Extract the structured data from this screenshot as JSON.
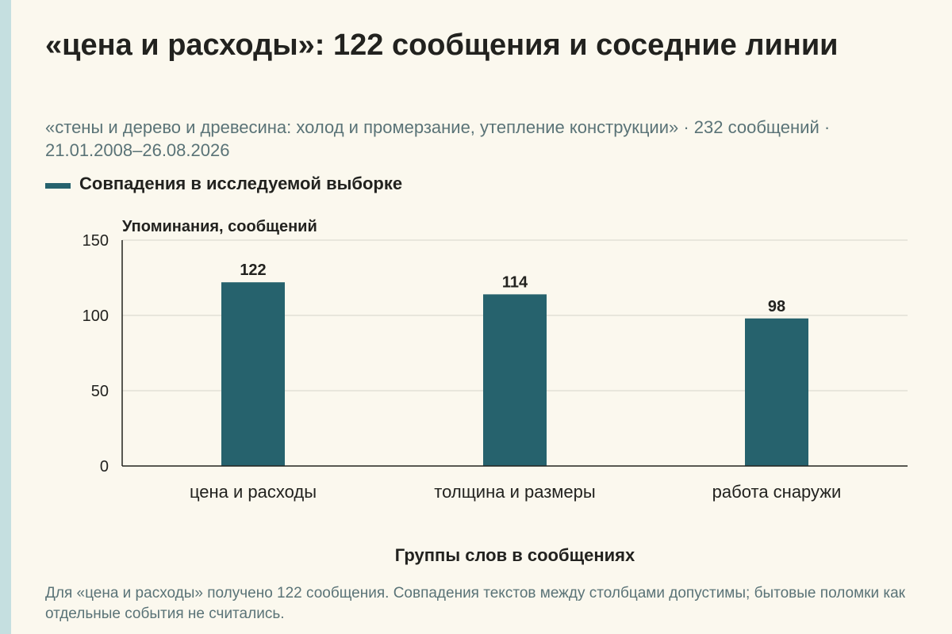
{
  "header": {
    "title": "«цена и расходы»: 122 сообщения и соседние линии",
    "subtitle": "«стены и дерево и древесина: холод и промерзание, утепление конструкции» · 232 сообщений · 21.01.2008–26.08.2026"
  },
  "legend": {
    "label": "Совпадения в исследуемой выборке"
  },
  "colors": {
    "bar": "#26626d",
    "accent_strip": "#c5dfe0",
    "background": "#fbf8ee"
  },
  "chart_data": {
    "type": "bar",
    "ylabel": "Упоминания, сообщений",
    "xlabel": "Группы слов в сообщениях",
    "ylim": [
      0,
      150
    ],
    "yticks": [
      0,
      50,
      100,
      150
    ],
    "grid": true,
    "legend_position": "top-left",
    "categories": [
      "цена и расходы",
      "толщина и размеры",
      "работа снаружи"
    ],
    "series": [
      {
        "name": "Совпадения в исследуемой выборке",
        "values": [
          122,
          114,
          98
        ]
      }
    ]
  },
  "footer": {
    "note": "Для «цена и расходы» получено 122 сообщения. Совпадения текстов между столбцами допустимы; бытовые поломки как отдельные события не считались."
  }
}
